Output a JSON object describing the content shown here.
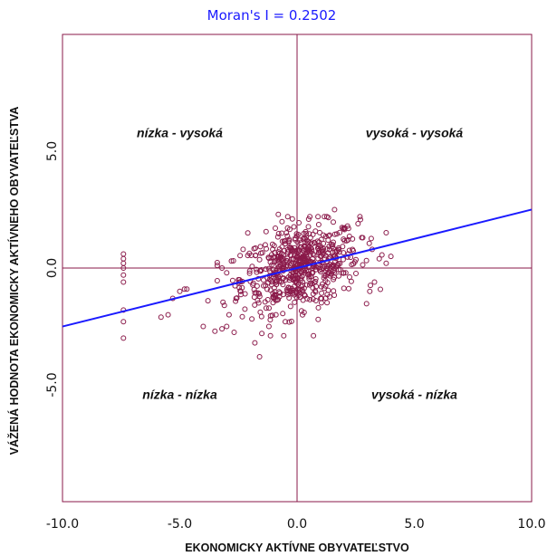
{
  "chart_data": {
    "type": "scatter",
    "title": "Moran's I = 0.2502",
    "xlabel": "EKONOMICKY AKTÍVNE OBYVATEĽSTVO",
    "ylabel": "VÁŽENÁ HODNOTA EKONOMICKY AKTÍVNEHO OBYVATEĽSTVA",
    "xlim": [
      -10,
      10
    ],
    "ylim": [
      -10,
      10
    ],
    "x_ticks": [
      {
        "value": -10,
        "label": "-10.0"
      },
      {
        "value": -5,
        "label": "-5.0"
      },
      {
        "value": 0,
        "label": "0.0"
      },
      {
        "value": 5,
        "label": "5.0"
      },
      {
        "value": 10,
        "label": "10.0"
      }
    ],
    "y_ticks": [
      {
        "value": 5,
        "label": "5.0"
      },
      {
        "value": 0,
        "label": "0.0"
      },
      {
        "value": -5,
        "label": "-5.0"
      }
    ],
    "quadrant_labels": [
      {
        "text": "nízka - vysoká",
        "x": -5.0,
        "y": 5.6
      },
      {
        "text": "vysoká - vysoká",
        "x": 5.0,
        "y": 5.6
      },
      {
        "text": "nízka - nízka",
        "x": -5.0,
        "y": -5.6
      },
      {
        "text": "vysoká - nízka",
        "x": 5.0,
        "y": -5.6
      }
    ],
    "regression_line": {
      "slope": 0.2502,
      "intercept": 0.0
    },
    "points": [
      [
        -7.4,
        0.6
      ],
      [
        -7.4,
        0.4
      ],
      [
        -7.4,
        0.2
      ],
      [
        -7.4,
        0.0
      ],
      [
        -7.4,
        -0.3
      ],
      [
        -7.4,
        -0.6
      ],
      [
        -7.4,
        -1.8
      ],
      [
        -7.4,
        -2.3
      ],
      [
        -7.4,
        -3.0
      ],
      [
        -5.3,
        -1.3
      ],
      [
        -5.0,
        -1.0
      ],
      [
        -4.7,
        -0.9
      ],
      [
        -4.8,
        -0.9
      ],
      [
        -5.8,
        -2.1
      ],
      [
        -5.5,
        -2.0
      ],
      [
        -4.0,
        -2.5
      ],
      [
        -3.5,
        -2.7
      ],
      [
        -3.0,
        -2.5
      ],
      [
        -3.2,
        -2.6
      ],
      [
        -3.8,
        -1.4
      ],
      [
        -3.1,
        -1.6
      ],
      [
        -2.9,
        -2.0
      ],
      [
        -3.0,
        -0.2
      ],
      [
        -3.2,
        0.0
      ],
      [
        -2.8,
        0.3
      ],
      [
        -2.5,
        -0.5
      ],
      [
        -2.3,
        0.8
      ],
      [
        -2.1,
        1.5
      ],
      [
        -2.4,
        -1.0
      ],
      [
        -2.6,
        -1.3
      ],
      [
        -1.8,
        -3.2
      ],
      [
        -1.6,
        -3.8
      ],
      [
        -1.5,
        -2.8
      ],
      [
        -1.2,
        -2.5
      ],
      [
        -0.8,
        2.3
      ],
      [
        -0.2,
        2.1
      ],
      [
        1.6,
        2.5
      ],
      [
        2.6,
        1.9
      ],
      [
        3.1,
        -1.0
      ],
      [
        3.3,
        -0.6
      ],
      [
        3.8,
        0.2
      ],
      [
        4.0,
        0.5
      ],
      [
        3.5,
        0.4
      ],
      [
        2.8,
        1.3
      ],
      [
        3.2,
        0.8
      ],
      [
        0.7,
        -2.9
      ],
      [
        0.9,
        -2.2
      ],
      [
        -0.5,
        -2.3
      ],
      [
        0.3,
        -1.9
      ],
      [
        -0.9,
        -2.0
      ]
    ]
  }
}
